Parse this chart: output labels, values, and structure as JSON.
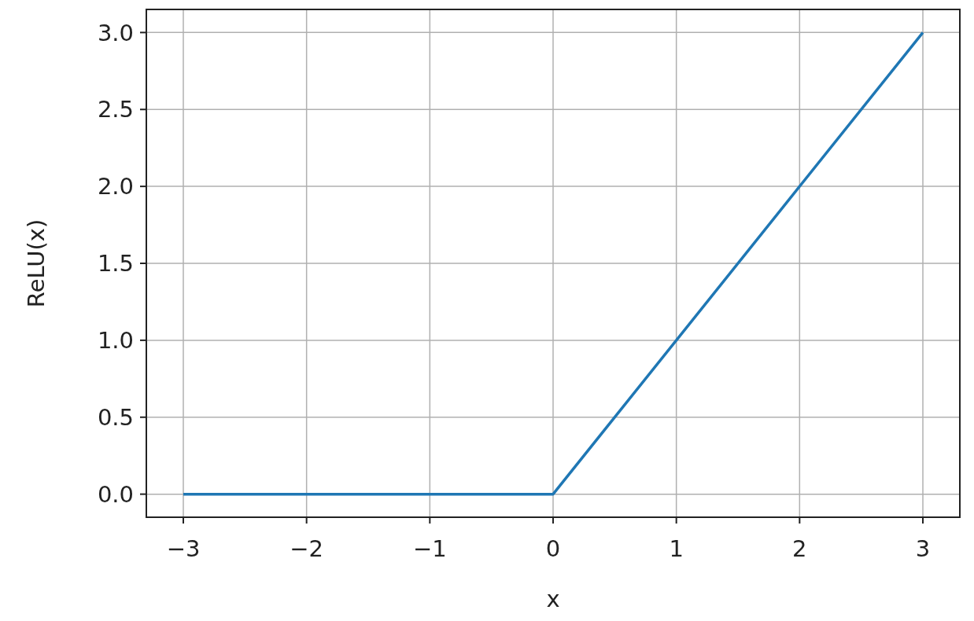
{
  "chart_data": {
    "type": "line",
    "xlabel": "x",
    "ylabel": "ReLU(x)",
    "x": [
      -3,
      0,
      3
    ],
    "series": [
      {
        "color": "#1f77b4",
        "values": [
          0,
          0,
          3
        ]
      }
    ],
    "xlim": [
      -3.3,
      3.3
    ],
    "ylim": [
      -0.15,
      3.15
    ],
    "xticks": [
      {
        "value": -3,
        "label": "−3"
      },
      {
        "value": -2,
        "label": "−2"
      },
      {
        "value": -1,
        "label": "−1"
      },
      0,
      1,
      2,
      3
    ],
    "yticks": [
      {
        "value": 0,
        "label": "0.0"
      },
      {
        "value": 0.5,
        "label": "0.5"
      },
      {
        "value": 1,
        "label": "1.0"
      },
      {
        "value": 1.5,
        "label": "1.5"
      },
      {
        "value": 2,
        "label": "2.0"
      },
      {
        "value": 2.5,
        "label": "2.5"
      },
      {
        "value": 3,
        "label": "3.0"
      }
    ],
    "grid": true
  }
}
